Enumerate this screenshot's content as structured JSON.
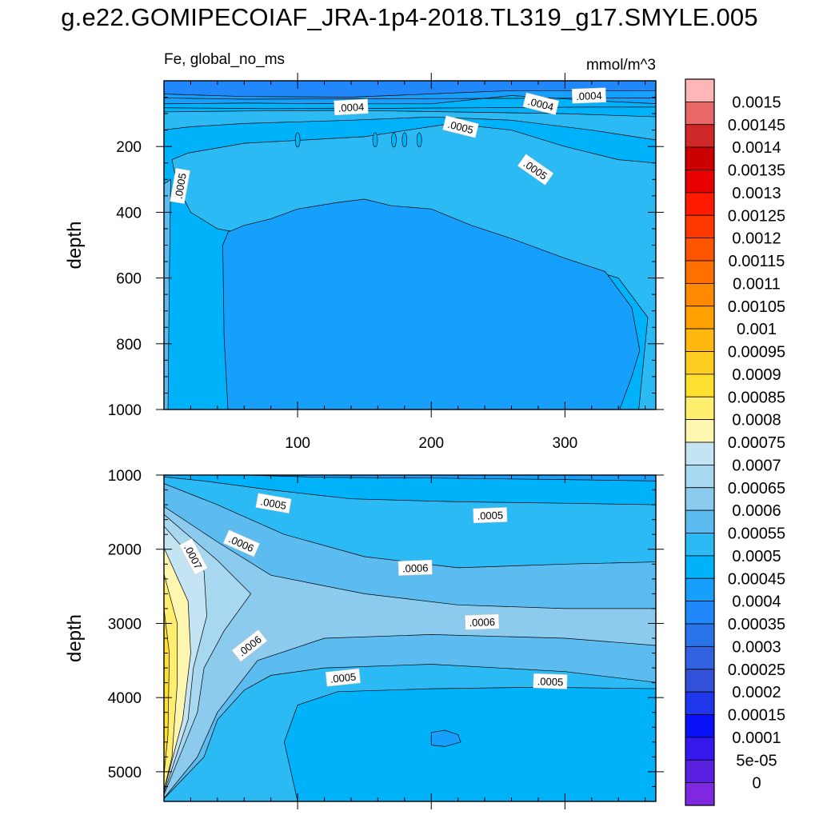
{
  "title": "g.e22.GOMIPECOIAF_JRA-1p4-2018.TL319_g17.SMYLE.005",
  "chart_data": [
    {
      "type": "heatmap",
      "panel": "upper",
      "left_label": "Fe, global_no_ms",
      "right_label": "mmol/m^3",
      "ylabel": "depth",
      "xlabel": "",
      "xlim": [
        0,
        368
      ],
      "ylim": [
        0,
        1000
      ],
      "y_reversed": true,
      "xticks": [
        100,
        200,
        300
      ],
      "xtick_labels": [
        "100",
        "200",
        "300"
      ],
      "yticks": [
        200,
        400,
        600,
        800,
        1000
      ],
      "ytick_labels": [
        "200",
        "400",
        "600",
        "800",
        "1000"
      ],
      "contour_labels": [
        {
          "text": ".0004",
          "x": 140,
          "depth": 80,
          "angle": -3
        },
        {
          "text": ".0004",
          "x": 282,
          "depth": 70,
          "angle": 14
        },
        {
          "text": ".0004",
          "x": 318,
          "depth": 45,
          "angle": -2
        },
        {
          "text": ".0005",
          "x": 222,
          "depth": 140,
          "angle": 14
        },
        {
          "text": ".0005",
          "x": 278,
          "depth": 270,
          "angle": 35
        },
        {
          "text": ".0005",
          "x": 12,
          "depth": 320,
          "angle": -80
        }
      ]
    },
    {
      "type": "heatmap",
      "panel": "lower",
      "ylabel": "depth",
      "xlabel": "",
      "xlim": [
        0,
        368
      ],
      "ylim": [
        1000,
        5400
      ],
      "y_reversed": true,
      "xticks": [
        100,
        200,
        300
      ],
      "xtick_labels": [
        "",
        "",
        ""
      ],
      "yticks": [
        1000,
        2000,
        3000,
        4000,
        5000
      ],
      "ytick_labels": [
        "1000",
        "2000",
        "3000",
        "4000",
        "5000"
      ],
      "contour_labels": [
        {
          "text": ".0005",
          "x": 82,
          "depth": 1380,
          "angle": 10
        },
        {
          "text": ".0005",
          "x": 244,
          "depth": 1540,
          "angle": -2
        },
        {
          "text": ".0006",
          "x": 58,
          "depth": 1920,
          "angle": 24
        },
        {
          "text": ".0007",
          "x": 22,
          "depth": 2100,
          "angle": 62
        },
        {
          "text": ".0006",
          "x": 188,
          "depth": 2250,
          "angle": -2
        },
        {
          "text": ".0006",
          "x": 238,
          "depth": 2980,
          "angle": -2
        },
        {
          "text": ".0006",
          "x": 64,
          "depth": 3300,
          "angle": -38
        },
        {
          "text": ".0005",
          "x": 134,
          "depth": 3730,
          "angle": -6
        },
        {
          "text": ".0005",
          "x": 289,
          "depth": 3780,
          "angle": 2
        }
      ]
    }
  ],
  "colorbar": {
    "levels": [
      "0.0015",
      "0.00145",
      "0.0014",
      "0.00135",
      "0.0013",
      "0.00125",
      "0.0012",
      "0.00115",
      "0.0011",
      "0.00105",
      "0.001",
      "0.00095",
      "0.0009",
      "0.00085",
      "0.0008",
      "0.00075",
      "0.0007",
      "0.00065",
      "0.0006",
      "0.00055",
      "0.0005",
      "0.00045",
      "0.0004",
      "0.00035",
      "0.0003",
      "0.00025",
      "0.0002",
      "0.00015",
      "0.0001",
      "5e-05",
      "0"
    ],
    "colors": [
      "#ffb6b6",
      "#e86868",
      "#d02828",
      "#cc0000",
      "#e80000",
      "#ff1a00",
      "#ff3800",
      "#ff5500",
      "#ff7000",
      "#ff8a00",
      "#ffa000",
      "#ffb810",
      "#ffcc20",
      "#ffe030",
      "#ffee70",
      "#fff7b0",
      "#c4e4f4",
      "#a8d8f0",
      "#8ccaee",
      "#5cbcf0",
      "#2cbaf4",
      "#00b2fa",
      "#16a0fc",
      "#2088fa",
      "#2873e8",
      "#3262e0",
      "#3250d8",
      "#2036ea",
      "#0a10f8",
      "#3418ee",
      "#5a20e2",
      "#8028e0"
    ]
  }
}
